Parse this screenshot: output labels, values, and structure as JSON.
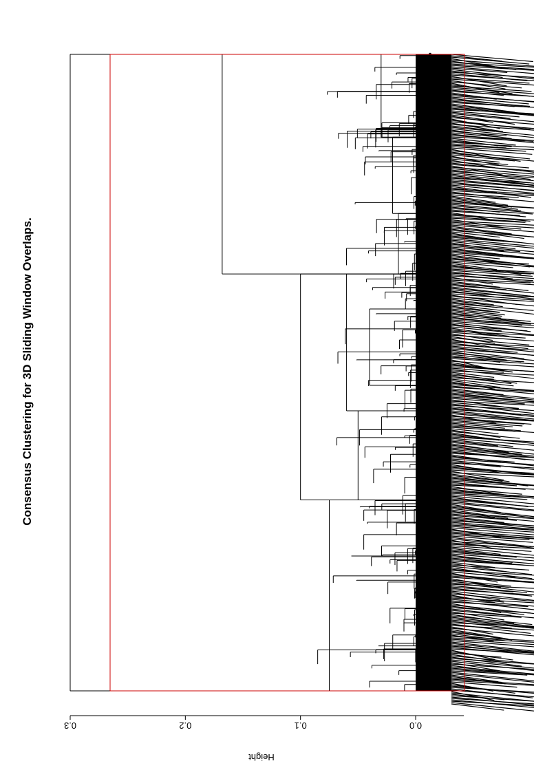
{
  "chart_data": {
    "type": "dendrogram",
    "title": "Consensus Clustering for 3D Sliding Window Overlaps.",
    "ylabel": "Height",
    "ylim": [
      0,
      0.3
    ],
    "yticks": [
      "0.0",
      "0.1",
      "0.2",
      "0.3"
    ],
    "tick_values": [
      0.0,
      0.1,
      0.2,
      0.3
    ],
    "orientation": "rotated-180-degrees",
    "cut_height": 0.265,
    "highlight_color": "#cc0000",
    "line_color": "#000000",
    "merges": [
      {
        "height": 0.3,
        "from": 0.0,
        "to": 1.0
      },
      {
        "height": 0.168,
        "from": 0.0,
        "to": 0.345
      },
      {
        "height": 0.1,
        "from": 0.345,
        "to": 0.7
      },
      {
        "height": 0.075,
        "from": 0.7,
        "to": 1.0
      },
      {
        "height": 0.06,
        "from": 0.345,
        "to": 0.56
      },
      {
        "height": 0.05,
        "from": 0.56,
        "to": 0.7
      },
      {
        "height": 0.04,
        "from": 0.4,
        "to": 0.52
      },
      {
        "height": 0.03,
        "from": 0.0,
        "to": 0.13
      },
      {
        "height": 0.02,
        "from": 0.13,
        "to": 0.25
      },
      {
        "height": 0.015,
        "from": 0.25,
        "to": 0.345
      }
    ]
  }
}
